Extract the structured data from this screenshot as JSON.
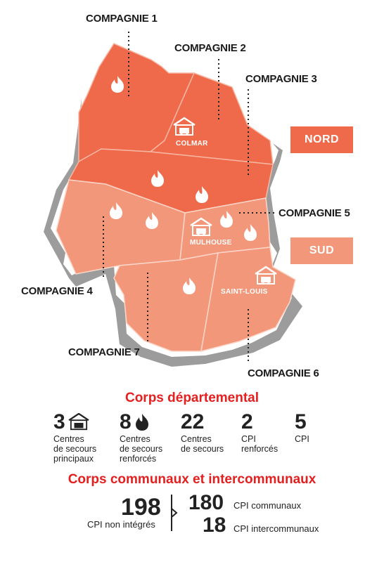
{
  "companies": {
    "c1": "COMPAGNIE 1",
    "c2": "COMPAGNIE 2",
    "c3": "COMPAGNIE 3",
    "c4": "COMPAGNIE 4",
    "c5": "COMPAGNIE 5",
    "c6": "COMPAGNIE 6",
    "c7": "COMPAGNIE 7"
  },
  "zones": {
    "nord": "NORD",
    "sud": "SUD"
  },
  "cities": {
    "colmar": "COLMAR",
    "mulhouse": "MULHOUSE",
    "saint_louis": "SAINT-LOUIS"
  },
  "colors": {
    "nord": "#ee6a4a",
    "sud": "#f3977a",
    "accent_red": "#e41f1f",
    "relief": "#9a9a9a"
  },
  "departemental": {
    "title": "Corps départemental",
    "stats": [
      {
        "value": "3",
        "icon": "fire-station-icon",
        "label1": "Centres",
        "label2": "de secours",
        "label3": "principaux"
      },
      {
        "value": "8",
        "icon": "flame-icon",
        "label1": "Centres",
        "label2": "de secours",
        "label3": "renforcés"
      },
      {
        "value": "22",
        "icon": "",
        "label1": "Centres",
        "label2": "de secours",
        "label3": ""
      },
      {
        "value": "2",
        "icon": "",
        "label1": "CPI",
        "label2": "renforcés",
        "label3": ""
      },
      {
        "value": "5",
        "icon": "",
        "label1": "CPI",
        "label2": "",
        "label3": ""
      }
    ]
  },
  "communaux": {
    "title": "Corps communaux et intercommunaux",
    "total_value": "198",
    "total_label": "CPI non intégrés",
    "communaux_value": "180",
    "communaux_label": "CPI communaux",
    "inter_value": "18",
    "inter_label": "CPI intercommunaux"
  }
}
